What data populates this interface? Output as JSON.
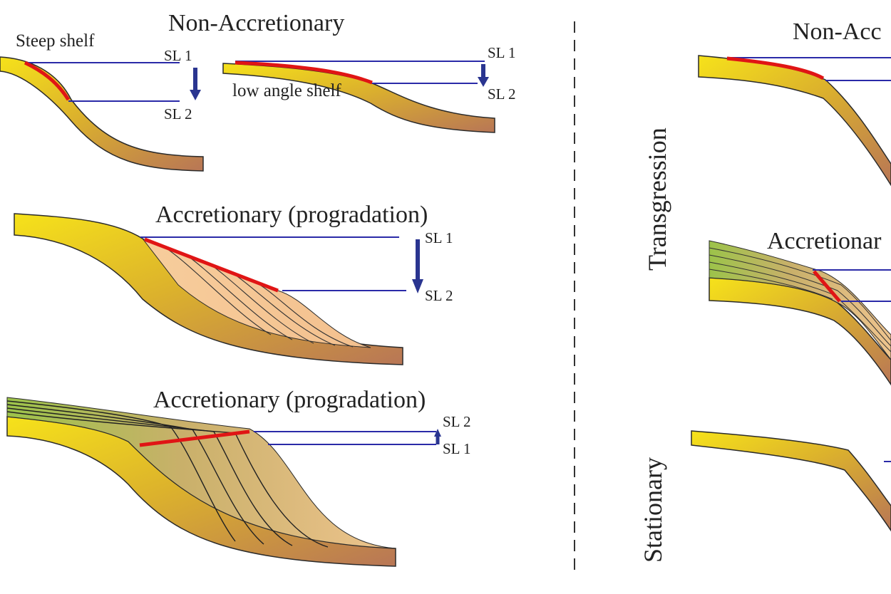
{
  "left_panel": {
    "top": {
      "title": "Non-Accretionary",
      "steep": {
        "shelf_label": "Steep shelf",
        "sl_upper": "SL 1",
        "sl_lower": "SL 2"
      },
      "low": {
        "shelf_label": "low angle shelf",
        "sl_upper": "SL 1",
        "sl_lower": "SL 2"
      }
    },
    "middle": {
      "title": "Accretionary (progradation)",
      "sl_upper": "SL 1",
      "sl_lower": "SL 2"
    },
    "bottom": {
      "title": "Accretionary (progradation)",
      "sl_upper": "SL 2",
      "sl_lower": "SL 1"
    }
  },
  "right_panel": {
    "row_labels": {
      "transgression": "Transgression",
      "stationary": "Stationary"
    },
    "top_title": "Non-Acc",
    "middle_title": "Accretionar"
  },
  "colors": {
    "sea_level_line": "#2a2aa8",
    "arrow": "#2a3590",
    "shelf_edge_highlight": "#e01515",
    "clinoform_fill": "#f5c79a",
    "topset_green": "#9ec24a",
    "slope_yellow": "#f6de1a",
    "slope_brown": "#b87a5a"
  }
}
